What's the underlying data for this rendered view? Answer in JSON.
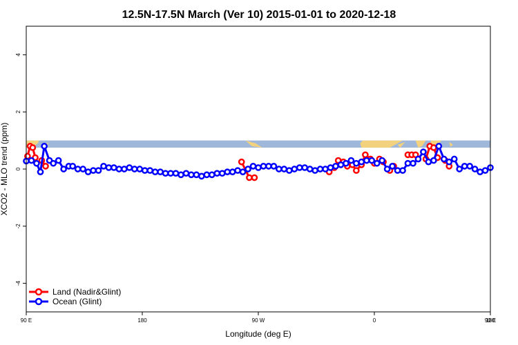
{
  "chart_data": {
    "type": "line",
    "title": "12.5N-17.5N March (Ver 10)   2015-01-01 to 2020-12-18",
    "xlabel": "Longitude (deg E)",
    "ylabel": "XCO2 - MLO trend (ppm)",
    "xlim": [
      90,
      450
    ],
    "ylim": [
      -5,
      5
    ],
    "x_ticks": [
      {
        "value": 90,
        "label": "90 E"
      },
      {
        "value": 180,
        "label": "180"
      },
      {
        "value": 270,
        "label": "90 W"
      },
      {
        "value": 360,
        "label": "0"
      },
      {
        "value": 450,
        "label": "90 E"
      },
      {
        "value": 540,
        "label": "180"
      }
    ],
    "y_ticks": [
      {
        "value": -4,
        "label": "-4"
      },
      {
        "value": -2,
        "label": "-2"
      },
      {
        "value": 0,
        "label": "0"
      },
      {
        "value": 2,
        "label": "2"
      },
      {
        "value": 4,
        "label": "4"
      }
    ],
    "grid": false,
    "legend_position": "bottom-left",
    "map_strip": {
      "y_range": [
        0.75,
        1.0
      ],
      "ocean_color": "#9fb7d9",
      "land_color": "#f2d27e"
    },
    "series": [
      {
        "name": "Land (Nadir&Glint)",
        "color": "#ff0000",
        "segments": [
          [
            [
              91,
              0.45
            ],
            [
              93,
              0.8
            ],
            [
              95,
              0.75
            ],
            [
              97,
              0.4
            ]
          ],
          [
            [
              102,
              0.3
            ],
            [
              105,
              0.1
            ]
          ],
          [
            [
              257,
              0.25
            ],
            [
              263,
              -0.3
            ],
            [
              267,
              -0.3
            ]
          ],
          [
            [
              325,
              -0.1
            ],
            [
              329,
              0.05
            ],
            [
              332,
              0.3
            ],
            [
              336,
              0.25
            ],
            [
              339,
              0.1
            ],
            [
              343,
              0.15
            ],
            [
              346,
              -0.05
            ],
            [
              350,
              0.15
            ],
            [
              353,
              0.5
            ],
            [
              357,
              0.35
            ],
            [
              360,
              0.2
            ],
            [
              364,
              0.35
            ],
            [
              367,
              0.25
            ]
          ],
          [
            [
              372,
              -0.05
            ],
            [
              375,
              0.1
            ]
          ],
          [
            [
              386,
              0.5
            ],
            [
              389,
              0.5
            ],
            [
              392,
              0.5
            ]
          ],
          [
            [
              400,
              0.35
            ],
            [
              403,
              0.8
            ],
            [
              406,
              0.75
            ],
            [
              409,
              0.4
            ]
          ],
          [
            [
              415,
              0.3
            ],
            [
              418,
              0.1
            ]
          ]
        ]
      },
      {
        "name": "Ocean (Glint)",
        "color": "#0000ff",
        "x": [
          90,
          94,
          98,
          101,
          104,
          108,
          111,
          115,
          119,
          123,
          126,
          130,
          134,
          138,
          142,
          146,
          150,
          154,
          158,
          162,
          166,
          170,
          174,
          178,
          182,
          186,
          190,
          194,
          198,
          202,
          206,
          210,
          214,
          218,
          222,
          226,
          230,
          234,
          238,
          242,
          246,
          250,
          254,
          258,
          262,
          266,
          270,
          274,
          278,
          282,
          286,
          290,
          294,
          298,
          302,
          306,
          310,
          314,
          318,
          322,
          326,
          330,
          334,
          338,
          342,
          346,
          350,
          354,
          358,
          362,
          366,
          370,
          374,
          378,
          382,
          386,
          390,
          394,
          398,
          402,
          406,
          410,
          414,
          418,
          422,
          426,
          430,
          434,
          438,
          442,
          446,
          450
        ],
        "values": [
          0.28,
          0.3,
          0.2,
          -0.1,
          0.8,
          0.3,
          0.2,
          0.3,
          0.0,
          0.1,
          0.1,
          0.0,
          0.0,
          -0.1,
          -0.05,
          -0.05,
          0.1,
          0.05,
          0.05,
          0.0,
          0.0,
          0.05,
          0.0,
          0.0,
          -0.05,
          -0.05,
          -0.1,
          -0.1,
          -0.15,
          -0.15,
          -0.15,
          -0.2,
          -0.15,
          -0.2,
          -0.2,
          -0.25,
          -0.2,
          -0.2,
          -0.15,
          -0.15,
          -0.1,
          -0.1,
          -0.05,
          -0.1,
          0.0,
          0.1,
          0.05,
          0.1,
          0.1,
          0.1,
          0.0,
          0.0,
          -0.05,
          0.0,
          0.05,
          0.05,
          0.0,
          -0.05,
          0.0,
          0.0,
          0.05,
          0.1,
          0.15,
          0.2,
          0.3,
          0.2,
          0.25,
          0.3,
          0.3,
          0.2,
          0.3,
          0.0,
          0.1,
          -0.05,
          -0.05,
          0.2,
          0.2,
          0.35,
          0.6,
          0.25,
          0.3,
          0.8,
          0.35,
          0.25,
          0.35,
          0.0,
          0.1,
          0.1,
          0.0,
          -0.1,
          -0.05,
          0.05
        ]
      }
    ]
  }
}
